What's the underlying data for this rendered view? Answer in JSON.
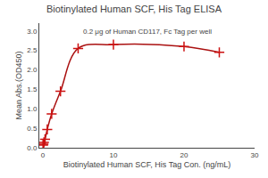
{
  "chart_data": {
    "type": "scatter",
    "title": "Biotinylated Human SCF, His Tag ELISA",
    "subtitle": "0.2 μg of Human CD117, Fc Tag per well",
    "xlabel": "Biotinylated Human SCF, His Tag Con. (ng/mL)",
    "ylabel": "Mean Abs.(OD450)",
    "x": [
      0.039,
      0.078,
      0.156,
      0.313,
      0.625,
      1.25,
      2.5,
      5.0,
      10.0,
      20.0,
      25.0
    ],
    "series": [
      {
        "type": "line",
        "line_style": "solid",
        "color": "#aa1111",
        "values": [
          0.07,
          0.09,
          0.14,
          0.22,
          0.47,
          0.87,
          1.45,
          2.55,
          2.65,
          2.6,
          2.45
        ]
      },
      {
        "type": "scatter",
        "marker": "cross",
        "color": "#cc1111",
        "values": [
          0.07,
          0.09,
          0.14,
          0.22,
          0.47,
          0.87,
          1.45,
          2.55,
          2.65,
          2.6,
          2.45
        ]
      }
    ],
    "xlim": [
      -0.5,
      30
    ],
    "ylim": [
      0.0,
      3.2
    ],
    "xticks": [
      0,
      10,
      20,
      30
    ],
    "yticks": [
      {
        "value": 0.0,
        "label": "0.0"
      },
      0.5,
      {
        "value": 1.0,
        "label": "1.0"
      },
      1.5,
      {
        "value": 2.0,
        "label": "2.0"
      },
      2.5,
      {
        "value": 3.0,
        "label": "3.0"
      }
    ],
    "grid": false
  }
}
